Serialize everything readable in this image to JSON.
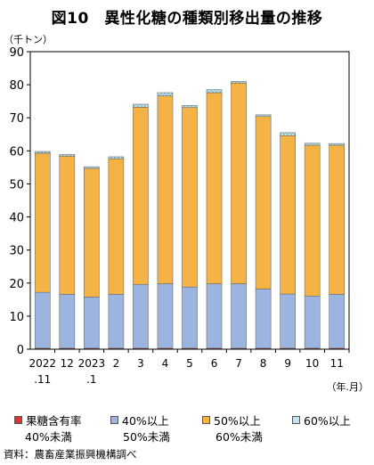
{
  "title": "図10　異性化糖の種類別移出量の推移",
  "source": "資料：農畜産業振興機構調べ",
  "chart_data": {
    "type": "bar",
    "stacked": true,
    "yunit_label": "（千トン）",
    "xunit_label": "（年.月）",
    "ylim": [
      0,
      90
    ],
    "yticks": [
      0,
      10,
      20,
      30,
      40,
      50,
      60,
      70,
      80,
      90
    ],
    "categories": [
      {
        "line1": "2022",
        "line2": ".11"
      },
      {
        "line1": "12",
        "line2": ""
      },
      {
        "line1": "2023",
        "line2": ".1"
      },
      {
        "line1": "2",
        "line2": ""
      },
      {
        "line1": "3",
        "line2": ""
      },
      {
        "line1": "4",
        "line2": ""
      },
      {
        "line1": "5",
        "line2": ""
      },
      {
        "line1": "6",
        "line2": ""
      },
      {
        "line1": "7",
        "line2": ""
      },
      {
        "line1": "8",
        "line2": ""
      },
      {
        "line1": "9",
        "line2": ""
      },
      {
        "line1": "10",
        "line2": ""
      },
      {
        "line1": "11",
        "line2": ""
      }
    ],
    "series": [
      {
        "name": "果糖含有率",
        "sub": "40%未満",
        "color": "#e03030",
        "pattern": "solid",
        "values": [
          0.3,
          0.3,
          0.3,
          0.3,
          0.3,
          0.3,
          0.3,
          0.3,
          0.3,
          0.3,
          0.3,
          0.3,
          0.3
        ]
      },
      {
        "name": "40%以上",
        "sub": "50%未満",
        "color": "#9cb5e0",
        "pattern": "solid",
        "values": [
          16.9,
          16.3,
          15.5,
          16.3,
          19.3,
          19.5,
          18.5,
          19.5,
          19.5,
          17.9,
          16.4,
          15.8,
          16.3
        ]
      },
      {
        "name": "50%以上",
        "sub": "60%未満",
        "color": "#f6b345",
        "pattern": "solid",
        "values": [
          42.1,
          41.8,
          38.9,
          41.0,
          53.6,
          56.8,
          54.3,
          57.8,
          60.7,
          52.2,
          47.9,
          45.6,
          45.1
        ]
      },
      {
        "name": "60%以上",
        "sub": "",
        "color": "#bfe6ec",
        "pattern": "dots",
        "values": [
          0.5,
          0.5,
          0.5,
          0.6,
          0.9,
          1.0,
          0.6,
          0.9,
          0.5,
          0.5,
          0.9,
          0.6,
          0.5
        ]
      }
    ]
  }
}
